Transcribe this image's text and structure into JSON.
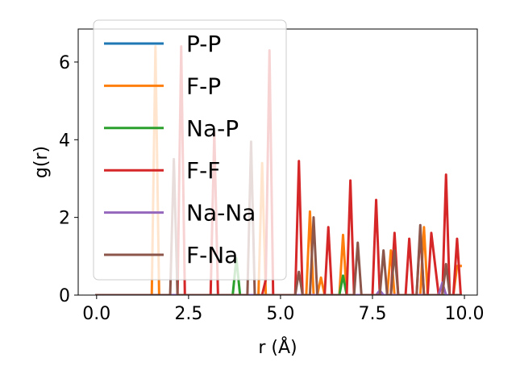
{
  "chart_data": {
    "type": "line",
    "xlabel": "r (Å)",
    "ylabel": "g(r)",
    "xlim": [
      -0.5,
      10.35
    ],
    "ylim": [
      0,
      6.85
    ],
    "xticks": [
      0.0,
      2.5,
      5.0,
      7.5,
      10.0
    ],
    "xtick_labels": [
      "0.0",
      "2.5",
      "5.0",
      "7.5",
      "10.0"
    ],
    "yticks": [
      0,
      2,
      4,
      6
    ],
    "ytick_labels": [
      "0",
      "2",
      "4",
      "6"
    ],
    "grid": false,
    "legend_position": "upper-left",
    "series": [
      {
        "name": "P-P",
        "color": "#1f77b4",
        "x": [
          0.0,
          9.9
        ],
        "y": [
          0.0,
          0.0
        ]
      },
      {
        "name": "F-P",
        "color": "#ff7f0e",
        "x": [
          0.0,
          1.5,
          1.6,
          1.7,
          4.4,
          4.5,
          4.6,
          5.7,
          5.8,
          5.9,
          6.0,
          6.1,
          6.2,
          6.6,
          6.7,
          6.8,
          7.9,
          8.0,
          8.1,
          8.8,
          8.9,
          9.0,
          9.7,
          9.8,
          9.9
        ],
        "y": [
          0.0,
          0.0,
          6.4,
          0.0,
          0.0,
          3.4,
          0.0,
          0.0,
          2.15,
          0.0,
          0.0,
          0.45,
          0.0,
          0.0,
          1.55,
          0.0,
          0.0,
          1.15,
          0.0,
          0.0,
          1.75,
          0.0,
          0.0,
          0.75,
          0.75
        ]
      },
      {
        "name": "Na-P",
        "color": "#2ca02c",
        "x": [
          0.0,
          3.7,
          3.8,
          3.9,
          6.6,
          6.7,
          6.8,
          9.9
        ],
        "y": [
          0.0,
          0.0,
          0.95,
          0.0,
          0.0,
          0.5,
          0.0,
          0.0
        ]
      },
      {
        "name": "F-F",
        "color": "#d62728",
        "x": [
          0.0,
          2.2,
          2.3,
          2.4,
          3.1,
          3.2,
          3.3,
          4.5,
          4.6,
          4.7,
          4.8,
          5.4,
          5.5,
          5.6,
          6.2,
          6.3,
          6.4,
          6.8,
          6.9,
          7.0,
          7.5,
          7.6,
          7.7,
          8.0,
          8.1,
          8.2,
          8.4,
          8.5,
          8.6,
          8.7,
          8.8,
          8.9,
          9.0,
          9.1,
          9.3,
          9.4,
          9.5,
          9.6,
          9.7,
          9.8,
          9.9
        ],
        "y": [
          0.0,
          0.0,
          6.4,
          0.0,
          0.0,
          4.2,
          0.0,
          0.0,
          0.4,
          6.3,
          0.0,
          0.0,
          3.45,
          0.0,
          0.0,
          1.75,
          0.0,
          0.0,
          2.95,
          0.0,
          0.0,
          2.45,
          0.0,
          0.0,
          1.6,
          0.0,
          0.0,
          1.45,
          0.0,
          0.0,
          1.65,
          0.0,
          0.0,
          1.6,
          0.0,
          0.0,
          3.1,
          0.0,
          0.0,
          1.45,
          0.0
        ]
      },
      {
        "name": "Na-Na",
        "color": "#9467bd",
        "x": [
          0.0,
          7.6,
          7.7,
          7.8,
          9.3,
          9.4,
          9.5,
          9.9
        ],
        "y": [
          0.0,
          0.0,
          0.12,
          0.0,
          0.0,
          0.32,
          0.0,
          0.0
        ]
      },
      {
        "name": "F-Na",
        "color": "#8c564b",
        "x": [
          0.0,
          2.0,
          2.1,
          2.2,
          4.1,
          4.2,
          4.3,
          5.4,
          5.5,
          5.6,
          5.8,
          5.9,
          6.0,
          7.0,
          7.1,
          7.2,
          7.7,
          7.8,
          7.9,
          8.0,
          8.1,
          8.2,
          8.7,
          8.8,
          8.9,
          9.4,
          9.5,
          9.6,
          9.9
        ],
        "y": [
          0.0,
          0.0,
          3.5,
          0.0,
          0.0,
          3.95,
          0.0,
          0.0,
          0.6,
          0.0,
          0.0,
          2.0,
          0.0,
          0.0,
          1.35,
          0.0,
          0.0,
          1.15,
          0.0,
          0.0,
          1.15,
          0.0,
          0.0,
          1.8,
          0.0,
          0.0,
          0.8,
          0.0,
          0.0
        ]
      }
    ]
  }
}
